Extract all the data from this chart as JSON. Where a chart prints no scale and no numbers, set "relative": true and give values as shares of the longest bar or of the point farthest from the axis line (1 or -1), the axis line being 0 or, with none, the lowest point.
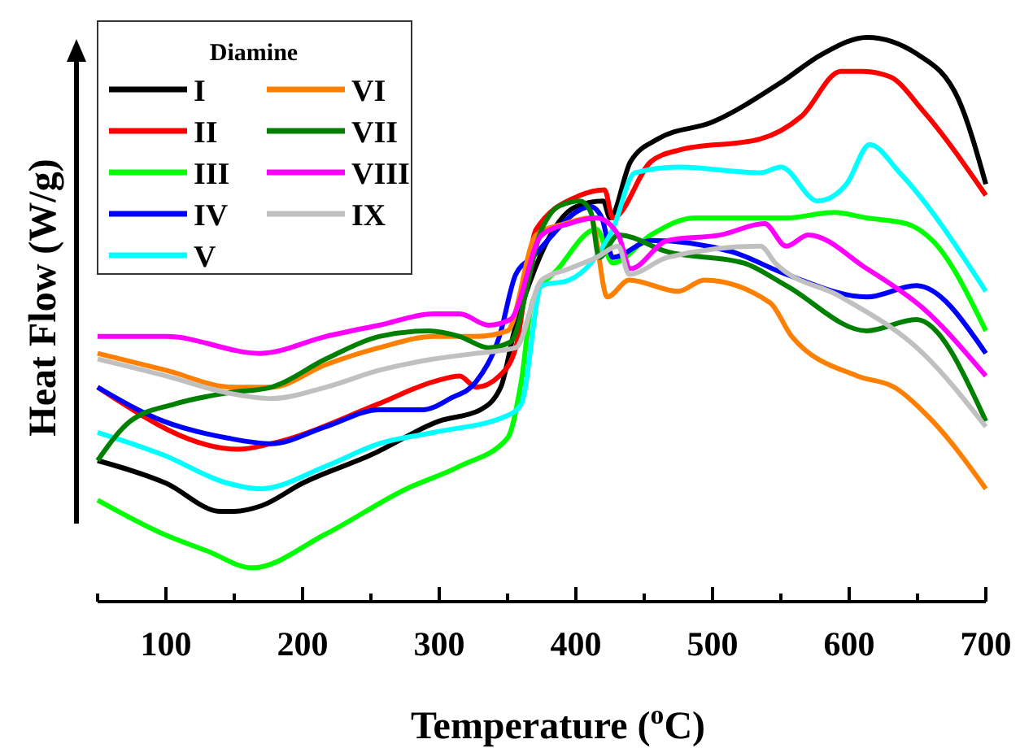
{
  "chart_data": {
    "type": "line",
    "xlabel": "Temperature ($^{o}$C)",
    "ylabel": "Heat Flow (W/g)",
    "legend_title": "Diamine",
    "legend": "top left",
    "relative": true,
    "grid": false,
    "line_style": "solid",
    "marker": "none",
    "xlim": [
      50,
      700
    ],
    "xticks": [
      {
        "value": 50,
        "label": null
      },
      100,
      {
        "value": 150,
        "label": null
      },
      200,
      {
        "value": 250,
        "label": null
      },
      300,
      {
        "value": 350,
        "label": null
      },
      400,
      {
        "value": 450,
        "label": null
      },
      500,
      {
        "value": 550,
        "label": null
      },
      600,
      {
        "value": 650,
        "label": null
      },
      700
    ],
    "series": [
      {
        "name": "I",
        "color": "#000000",
        "x": [
          50,
          100,
          140,
          150,
          170,
          200,
          250,
          300,
          330,
          345,
          355,
          370,
          400,
          420,
          425,
          440,
          460,
          500,
          550,
          580,
          613,
          650,
          680,
          700
        ],
        "values": [
          0.25,
          0.21,
          0.16,
          0.16,
          0.17,
          0.21,
          0.26,
          0.32,
          0.34,
          0.38,
          0.48,
          0.59,
          0.7,
          0.71,
          0.68,
          0.78,
          0.82,
          0.85,
          0.92,
          0.97,
          1.0,
          0.97,
          0.89,
          0.74
        ]
      },
      {
        "name": "II",
        "color": "#ff0000",
        "x": [
          50,
          153,
          177,
          255,
          296,
          315,
          327,
          344,
          356,
          371,
          403,
          421,
          427,
          455,
          475,
          535,
          565,
          594,
          610,
          630,
          654,
          700
        ],
        "values": [
          0.38,
          0.27,
          0.28,
          0.35,
          0.39,
          0.4,
          0.38,
          0.4,
          0.45,
          0.66,
          0.72,
          0.73,
          0.68,
          0.78,
          0.8,
          0.82,
          0.86,
          0.94,
          0.94,
          0.93,
          0.87,
          0.72
        ]
      },
      {
        "name": "III",
        "color": "#00ff00",
        "x": [
          50,
          98,
          130,
          163,
          217,
          276,
          315,
          350,
          360,
          368,
          387,
          415,
          427,
          455,
          487,
          554,
          589,
          613,
          642,
          661,
          700
        ],
        "values": [
          0.18,
          0.12,
          0.09,
          0.06,
          0.12,
          0.2,
          0.24,
          0.29,
          0.39,
          0.53,
          0.59,
          0.66,
          0.6,
          0.65,
          0.68,
          0.68,
          0.69,
          0.68,
          0.67,
          0.64,
          0.48
        ]
      },
      {
        "name": "IV",
        "color": "#0000ff",
        "x": [
          50,
          98,
          145,
          177,
          217,
          256,
          288,
          308,
          327,
          344,
          356,
          368,
          411,
          419,
          427,
          455,
          514,
          554,
          613,
          649,
          700
        ],
        "values": [
          0.38,
          0.32,
          0.29,
          0.28,
          0.31,
          0.34,
          0.34,
          0.36,
          0.39,
          0.47,
          0.58,
          0.61,
          0.7,
          0.68,
          0.61,
          0.64,
          0.62,
          0.58,
          0.54,
          0.56,
          0.44
        ]
      },
      {
        "name": "V",
        "color": "#00ffff",
        "x": [
          50,
          98,
          145,
          169,
          217,
          256,
          296,
          350,
          360,
          375,
          395,
          411,
          427,
          443,
          475,
          535,
          550,
          577,
          598,
          615,
          637,
          700
        ],
        "values": [
          0.3,
          0.26,
          0.21,
          0.2,
          0.24,
          0.28,
          0.3,
          0.33,
          0.35,
          0.56,
          0.57,
          0.6,
          0.66,
          0.76,
          0.77,
          0.76,
          0.77,
          0.71,
          0.74,
          0.81,
          0.76,
          0.55
        ]
      },
      {
        "name": "VI",
        "color": "#ff8000",
        "x": [
          50,
          100,
          149,
          177,
          217,
          256,
          296,
          327,
          350,
          371,
          392,
          411,
          423,
          439,
          475,
          494,
          542,
          558,
          606,
          633,
          661,
          700
        ],
        "values": [
          0.44,
          0.41,
          0.38,
          0.38,
          0.42,
          0.45,
          0.47,
          0.47,
          0.48,
          0.65,
          0.67,
          0.68,
          0.54,
          0.57,
          0.55,
          0.57,
          0.53,
          0.47,
          0.4,
          0.38,
          0.32,
          0.2
        ]
      },
      {
        "name": "VII",
        "color": "#008000",
        "x": [
          50,
          74,
          106,
          145,
          177,
          217,
          256,
          292,
          315,
          336,
          352,
          375,
          387,
          403,
          411,
          417,
          431,
          467,
          523,
          554,
          613,
          649,
          700
        ],
        "values": [
          0.25,
          0.32,
          0.35,
          0.37,
          0.38,
          0.43,
          0.47,
          0.48,
          0.47,
          0.45,
          0.46,
          0.66,
          0.7,
          0.71,
          0.69,
          0.61,
          0.65,
          0.62,
          0.6,
          0.56,
          0.48,
          0.5,
          0.32
        ]
      },
      {
        "name": "VIII",
        "color": "#ff00ff",
        "x": [
          50,
          100,
          169,
          217,
          256,
          296,
          315,
          336,
          352,
          375,
          395,
          415,
          431,
          440,
          467,
          506,
          538,
          554,
          570,
          613,
          654,
          700
        ],
        "values": [
          0.47,
          0.47,
          0.44,
          0.47,
          0.49,
          0.51,
          0.51,
          0.49,
          0.5,
          0.65,
          0.67,
          0.68,
          0.65,
          0.59,
          0.64,
          0.65,
          0.67,
          0.63,
          0.65,
          0.59,
          0.52,
          0.4
        ]
      },
      {
        "name": "IX",
        "color": "#c0c0c0",
        "x": [
          50,
          100,
          145,
          177,
          217,
          256,
          296,
          327,
          356,
          375,
          395,
          415,
          431,
          439,
          467,
          535,
          546,
          594,
          654,
          700
        ],
        "values": [
          0.43,
          0.4,
          0.37,
          0.36,
          0.38,
          0.41,
          0.43,
          0.44,
          0.45,
          0.57,
          0.59,
          0.61,
          0.63,
          0.58,
          0.61,
          0.63,
          0.6,
          0.54,
          0.44,
          0.31
        ]
      }
    ]
  }
}
